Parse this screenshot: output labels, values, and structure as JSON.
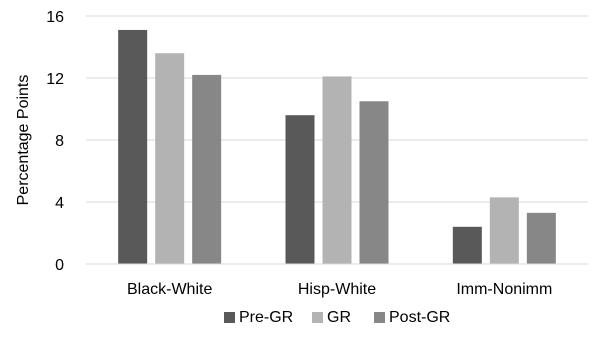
{
  "chart_data": {
    "type": "bar",
    "title": "",
    "xlabel": "",
    "ylabel": "Percentage Points",
    "ylim": [
      0,
      16
    ],
    "yticks": [
      0,
      4,
      8,
      12,
      16
    ],
    "grid": true,
    "legend_position": "bottom",
    "categories": [
      "Black-White",
      "Hisp-White",
      "Imm-Nonimm"
    ],
    "series": [
      {
        "name": "Pre-GR",
        "color": "#595959",
        "values": [
          15.1,
          9.6,
          2.4
        ]
      },
      {
        "name": "GR",
        "color": "#b3b3b3",
        "values": [
          13.6,
          12.1,
          4.3
        ]
      },
      {
        "name": "Post-GR",
        "color": "#878787",
        "values": [
          12.2,
          10.5,
          3.3
        ]
      }
    ]
  }
}
